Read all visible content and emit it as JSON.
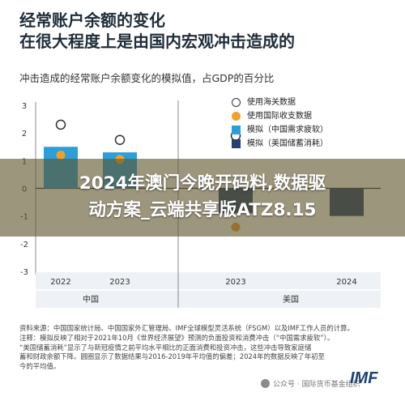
{
  "header": {
    "title_line1": "经常账户余额的变化",
    "title_line2": "在很大程度上是由国内宏观冲击造成的",
    "subtitle": "冲击造成的经常账户余额变化的模拟值，占GDP的百分比"
  },
  "legend": [
    {
      "label": "使用海关数据",
      "marker": "circle-hollow",
      "color": "#333333"
    },
    {
      "label": "使用国际收支数据",
      "marker": "circle",
      "color": "#f0a02a"
    },
    {
      "label": "模拟（中国需求疲软）",
      "marker": "square",
      "color": "#2a9fd8"
    },
    {
      "label": "模拟（美国储蓄消耗）",
      "marker": "square",
      "color": "#23406e"
    }
  ],
  "banner": {
    "line1": "2024年澳门今晚开码料,数据驱",
    "line2": "动方案_云端共享版ATZ8.15"
  },
  "chart_data": {
    "type": "bar",
    "categories": [
      "2022",
      "2023",
      "2023",
      "2024"
    ],
    "groups": [
      "中国",
      "美国"
    ],
    "group_of_category": [
      0,
      0,
      1,
      1
    ],
    "ylim": [
      -3,
      3
    ],
    "yticks": [
      "3",
      "2",
      "1",
      "0",
      "-1",
      "-2",
      "-3"
    ],
    "grid": false,
    "legend_position": "top-right",
    "series": [
      {
        "name": "模拟（中国需求疲软）",
        "kind": "bar",
        "color": "#2a9fd8",
        "values": [
          1.5,
          1.3,
          null,
          null
        ]
      },
      {
        "name": "模拟（美国储蓄消耗）",
        "kind": "bar",
        "color": "#23406e",
        "values": [
          null,
          null,
          -0.9,
          -1.0
        ]
      },
      {
        "name": "使用海关数据",
        "kind": "point-hollow",
        "color": "#333333",
        "values": [
          2.3,
          1.75,
          1.9,
          null
        ]
      },
      {
        "name": "使用国际收支数据",
        "kind": "point",
        "color": "#f0a02a",
        "values": [
          1.2,
          1.05,
          -1.4,
          null
        ]
      }
    ]
  },
  "notes": {
    "line1": "资料来源：中国国家统计局、中国国家外汇管理局、IMF全球模型灵活系统（FSGM）以及IMF工作人员的计算。",
    "line2": "注释：模拟反映了相对于2021年10月《世界经济展望》预测的负面投资和消费冲击（“中国需求疲软”）。",
    "line3": "“美国储蓄消耗”显示了与新冠疫情之前平均水平相比的正面消费和投资冲击，这些冲击导致家庭储",
    "line4": "蓄和财政余额下降。圆圈显示了数据结果与2016-2019年平均值的偏差；2024年的数据反映了年初至",
    "line5": "今的平均值。"
  },
  "watermark": {
    "text": "公众号 · 国际货币基金组织"
  },
  "logo": {
    "text": "IMF"
  }
}
